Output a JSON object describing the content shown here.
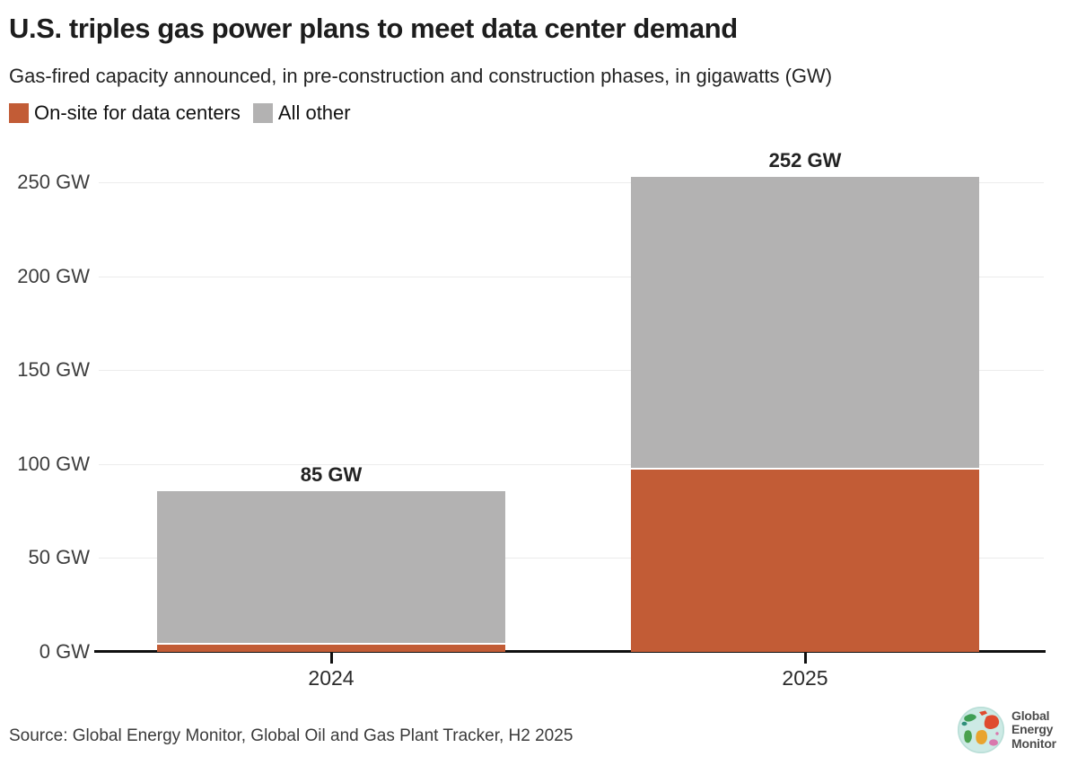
{
  "header": {
    "title": "U.S. triples gas power plans to meet data center demand",
    "subtitle": "Gas-fired capacity announced, in pre-construction and construction phases, in gigawatts (GW)"
  },
  "chart_data": {
    "type": "bar",
    "stacked": true,
    "title": "U.S. triples gas power plans to meet data center demand",
    "subtitle": "Gas-fired capacity announced, in pre-construction and construction phases, in gigawatts (GW)",
    "categories": [
      "2024",
      "2025"
    ],
    "series": [
      {
        "name": "On-site for data centers",
        "color": "#c25c36",
        "values": [
          4,
          97
        ]
      },
      {
        "name": "All other",
        "color": "#b3b2b2",
        "values": [
          81,
          155
        ]
      }
    ],
    "totals": [
      85,
      252
    ],
    "total_labels": [
      "85 GW",
      "252 GW"
    ],
    "xlabel": "",
    "ylabel": "GW",
    "ylim": [
      0,
      260
    ],
    "grid": "horizontal",
    "legend_position": "top-left",
    "y_ticks": [
      {
        "value": 0,
        "label": "0 GW"
      },
      {
        "value": 50,
        "label": "50 GW"
      },
      {
        "value": 100,
        "label": "100 GW"
      },
      {
        "value": 150,
        "label": "150 GW"
      },
      {
        "value": 200,
        "label": "200 GW"
      },
      {
        "value": 250,
        "label": "250 GW"
      }
    ]
  },
  "colors": {
    "accent_orange": "#c25c36",
    "neutral_gray": "#b3b2b2",
    "axis_black": "#101010",
    "gridline": "#ececec"
  },
  "footer": {
    "source": "Source: Global Energy Monitor, Global Oil and Gas Plant Tracker, H2 2025",
    "logo": {
      "lines": [
        "Global",
        "Energy",
        "Monitor"
      ]
    }
  }
}
